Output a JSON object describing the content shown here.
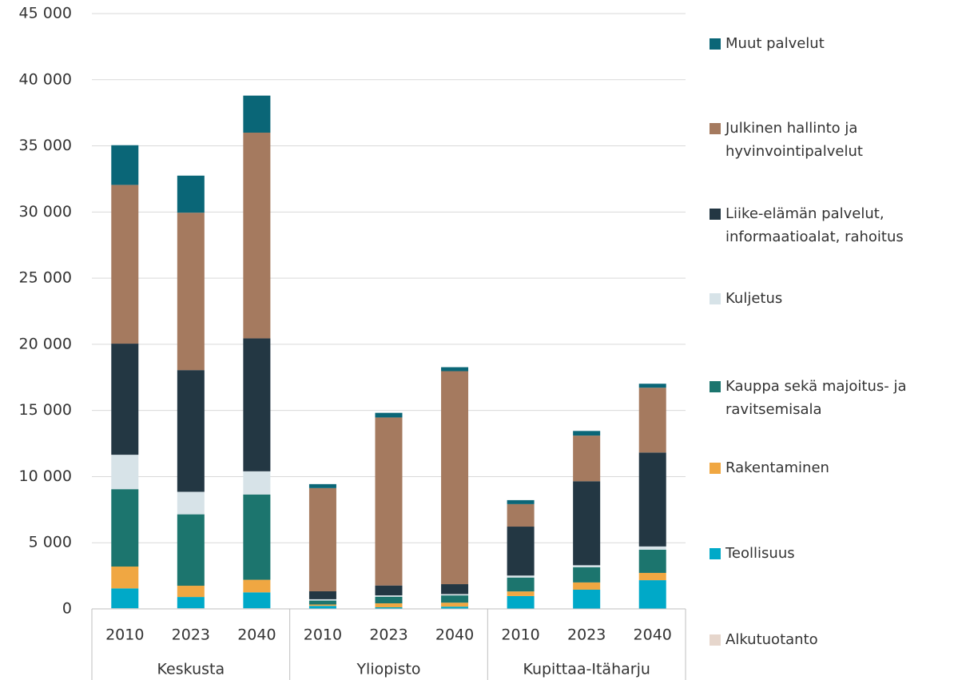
{
  "chart_data": {
    "type": "stacked-bar",
    "categories": [
      "2010",
      "2023",
      "2040",
      "2010",
      "2023",
      "2040",
      "2010",
      "2023",
      "2040"
    ],
    "groups": [
      "Keskusta",
      "Yliopisto",
      "Kupittaa-Itäharju"
    ],
    "series": [
      {
        "name": "Alkutuotanto",
        "color": "#e6d6cc",
        "values": [
          50,
          50,
          50,
          30,
          20,
          20,
          20,
          20,
          20
        ]
      },
      {
        "name": "Teollisuus",
        "color": "#00a9c8",
        "values": [
          1500,
          850,
          1200,
          200,
          100,
          150,
          950,
          1430,
          2150
        ]
      },
      {
        "name": "Rakentaminen",
        "color": "#f0a742",
        "values": [
          1650,
          850,
          950,
          100,
          300,
          300,
          350,
          550,
          550
        ]
      },
      {
        "name": "Kauppa sekä majoitus- ja ravitsemisala",
        "color": "#1c756e",
        "values": [
          5850,
          5400,
          6450,
          300,
          500,
          550,
          1050,
          1150,
          1750
        ]
      },
      {
        "name": "Kuljetus",
        "color": "#d7e3e8",
        "values": [
          2600,
          1700,
          1750,
          100,
          100,
          100,
          150,
          150,
          250
        ]
      },
      {
        "name": "Liike-elämän palvelut, informaatioalat, rahoitus",
        "color": "#233743",
        "values": [
          8400,
          9200,
          10050,
          600,
          750,
          750,
          3700,
          6350,
          7100
        ]
      },
      {
        "name": "Julkinen hallinto ja hyvinvointipalvelut",
        "color": "#a57a5f",
        "values": [
          12000,
          11900,
          15550,
          7800,
          12700,
          16100,
          1700,
          3450,
          4900
        ]
      },
      {
        "name": "Muut palvelut",
        "color": "#0a6677",
        "values": [
          3000,
          2800,
          2800,
          300,
          350,
          300,
          300,
          350,
          300
        ]
      }
    ],
    "ylim": [
      0,
      45000
    ],
    "yticks": [
      0,
      {
        "value": 5000,
        "label": "5 000"
      },
      {
        "value": 10000,
        "label": "10 000"
      },
      {
        "value": 15000,
        "label": "15 000"
      },
      {
        "value": 20000,
        "label": "20 000"
      },
      {
        "value": 25000,
        "label": "25 000"
      },
      {
        "value": 30000,
        "label": "30 000"
      },
      {
        "value": 35000,
        "label": "35 000"
      },
      {
        "value": 40000,
        "label": "40 000"
      },
      {
        "value": 45000,
        "label": "45 000"
      }
    ],
    "grid": true
  }
}
